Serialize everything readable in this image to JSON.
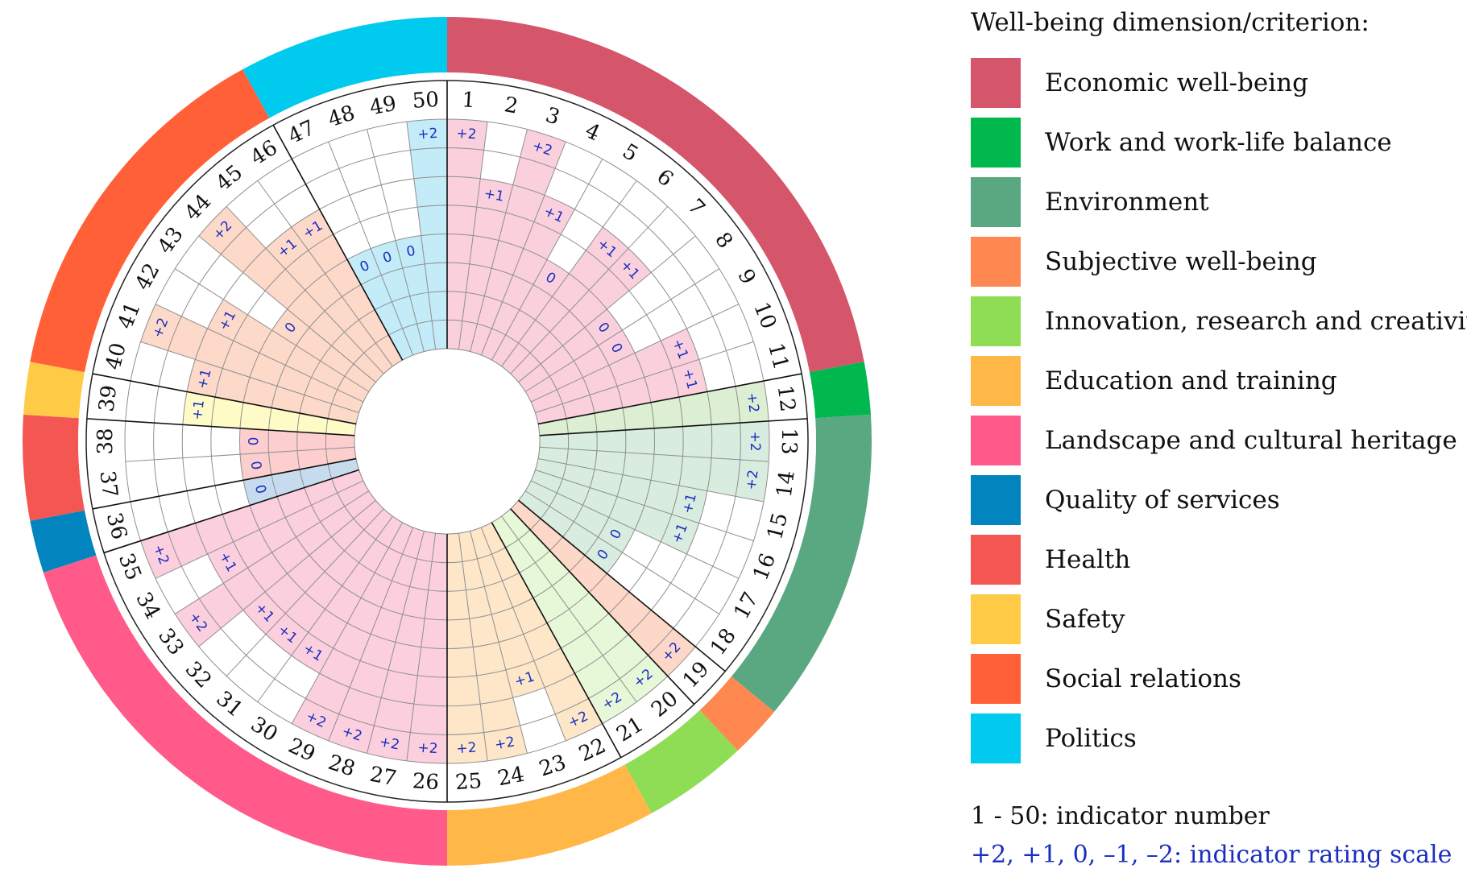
{
  "legend": {
    "title": "Well-being dimension/criterion:",
    "items": [
      {
        "label": "Economic well-being",
        "color": "#d5566a"
      },
      {
        "label": "Work and work-life balance",
        "color": "#00b84e"
      },
      {
        "label": "Environment",
        "color": "#5aa882"
      },
      {
        "label": "Subjective well-being",
        "color": "#ff8750"
      },
      {
        "label": "Innovation, research and creativity",
        "color": "#8fdc55"
      },
      {
        "label": "Education and training",
        "color": "#ffb748"
      },
      {
        "label": "Landscape and cultural heritage",
        "color": "#ff5a8a"
      },
      {
        "label": "Quality of services",
        "color": "#0284bf"
      },
      {
        "label": "Health",
        "color": "#f45652"
      },
      {
        "label": "Safety",
        "color": "#ffcb47"
      },
      {
        "label": "Social relations",
        "color": "#ff6038"
      },
      {
        "label": "Politics",
        "color": "#00cbee"
      }
    ]
  },
  "notes": {
    "indicator_number": "1 - 50: indicator number",
    "rating_scale": "+2, +1, 0, –1, –2: indicator rating scale"
  },
  "chart_data": {
    "type": "radial-bar",
    "indicators": [
      1,
      2,
      3,
      4,
      5,
      6,
      7,
      8,
      9,
      10,
      11,
      12,
      13,
      14,
      15,
      16,
      17,
      18,
      19,
      20,
      21,
      22,
      23,
      24,
      25,
      26,
      27,
      28,
      29,
      30,
      31,
      32,
      33,
      34,
      35,
      36,
      37,
      38,
      39,
      40,
      41,
      42,
      43,
      44,
      45,
      46,
      47,
      48,
      49,
      50
    ],
    "ratings": [
      "+2",
      "+1",
      "+2",
      "+1",
      "0",
      "+1",
      "+1",
      "0",
      "0",
      "+1",
      "+1",
      "+2",
      "+2",
      "+2",
      "+1",
      "+1",
      "0",
      "0",
      "+2",
      "+2",
      "+2",
      "+2",
      "+1",
      "+2",
      "+2",
      "+2",
      "+2",
      "+2",
      "+2",
      "+1",
      "+1",
      "+1",
      "+2",
      "+1",
      "+2",
      "0",
      "0",
      "0",
      "+1",
      "+1",
      "+2",
      "+1",
      "0",
      "+2",
      "+1",
      "+1",
      "0",
      "0",
      "0",
      "+2"
    ],
    "scale": [
      "-2",
      "-1",
      "0",
      "+1",
      "+2"
    ],
    "groups": [
      {
        "dimension": "Economic well-being",
        "indicators": [
          1,
          11
        ],
        "color": "#d5566a",
        "fill": "#f9d0dc"
      },
      {
        "dimension": "Work and work-life balance",
        "indicators": [
          12,
          12
        ],
        "color": "#00b84e",
        "fill": "#dcefd2"
      },
      {
        "dimension": "Environment",
        "indicators": [
          13,
          18
        ],
        "color": "#5aa882",
        "fill": "#d8eddf"
      },
      {
        "dimension": "Subjective well-being",
        "indicators": [
          19,
          19
        ],
        "color": "#ff8750",
        "fill": "#fdd8c9"
      },
      {
        "dimension": "Innovation, research and creativity",
        "indicators": [
          20,
          21
        ],
        "color": "#8fdc55",
        "fill": "#e6f8d8"
      },
      {
        "dimension": "Education and training",
        "indicators": [
          22,
          25
        ],
        "color": "#ffb748",
        "fill": "#fde7c8"
      },
      {
        "dimension": "Landscape and cultural heritage",
        "indicators": [
          26,
          35
        ],
        "color": "#ff5a8a",
        "fill": "#fbcfdd"
      },
      {
        "dimension": "Quality of services",
        "indicators": [
          36,
          36
        ],
        "color": "#0284bf",
        "fill": "#c6dcee"
      },
      {
        "dimension": "Health",
        "indicators": [
          37,
          38
        ],
        "color": "#f45652",
        "fill": "#fdcece"
      },
      {
        "dimension": "Safety",
        "indicators": [
          39,
          39
        ],
        "color": "#ffcb47",
        "fill": "#fefbc6"
      },
      {
        "dimension": "Social relations",
        "indicators": [
          40,
          46
        ],
        "color": "#ff6038",
        "fill": "#fdd9c9"
      },
      {
        "dimension": "Politics",
        "indicators": [
          47,
          50
        ],
        "color": "#00cbee",
        "fill": "#c3ecf8"
      }
    ]
  }
}
